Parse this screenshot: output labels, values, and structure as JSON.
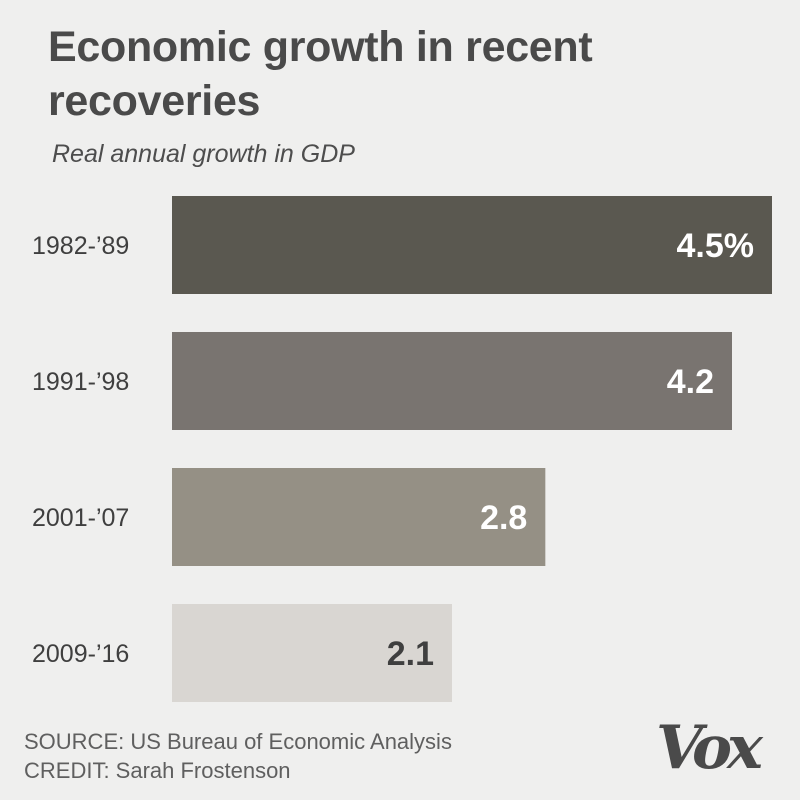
{
  "chart_data": {
    "type": "bar",
    "orientation": "horizontal",
    "title": "Economic growth in recent recoveries",
    "subtitle": "Real annual growth in GDP",
    "categories": [
      "1982-’89",
      "1991-’98",
      "2001-’07",
      "2009-’16"
    ],
    "values": [
      4.5,
      4.2,
      2.8,
      2.1
    ],
    "value_labels": [
      "4.5%",
      "4.2",
      "2.8",
      "2.1"
    ],
    "xlim": [
      0,
      4.5
    ],
    "bar_colors": [
      "#5a5850",
      "#797470",
      "#959085",
      "#d9d6d2"
    ],
    "label_colors": [
      "#ffffff",
      "#ffffff",
      "#ffffff",
      "#3f3f3f"
    ],
    "xlabel": "",
    "ylabel": "",
    "grid": false
  },
  "footer": {
    "source": "SOURCE: US Bureau of Economic Analysis",
    "credit": "CREDIT: Sarah Frostenson"
  },
  "logo": {
    "text": "Vox"
  }
}
